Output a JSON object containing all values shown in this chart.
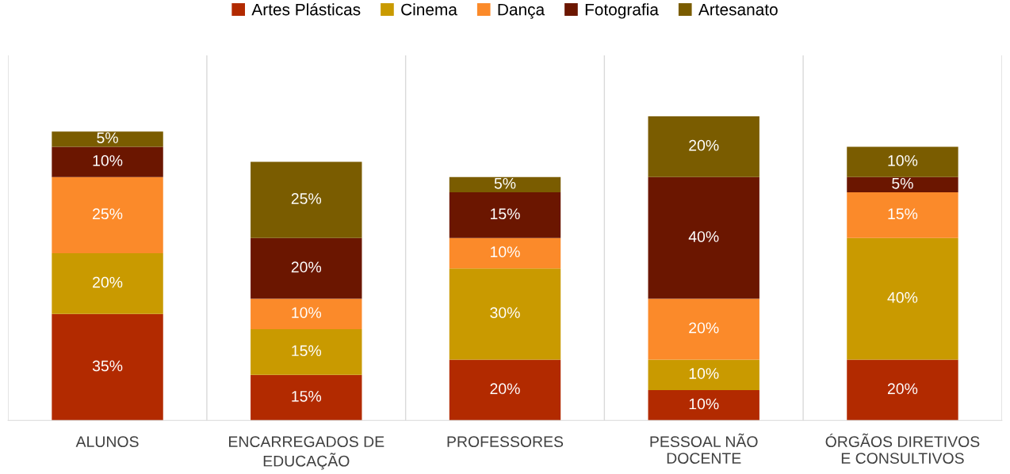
{
  "chart_data": {
    "type": "bar",
    "stacked": true,
    "legend": "top",
    "categories": [
      "ALUNOS",
      "ENCARREGADOS DE\nEDUCAÇÃO",
      "PROFESSORES",
      "PESSOAL NÃO\nDOCENTE",
      "ÓRGÃOS DIRETIVOS\nE CONSULTIVOS"
    ],
    "series": [
      {
        "name": "Artes Plásticas",
        "color": "#b22a00",
        "values": [
          35,
          15,
          20,
          10,
          20
        ],
        "value_labels": [
          "35%",
          "15%",
          "20%",
          "10%",
          "20%"
        ]
      },
      {
        "name": "Cinema",
        "color": "#c99a00",
        "values": [
          20,
          15,
          30,
          10,
          40
        ],
        "value_labels": [
          "20%",
          "15%",
          "30%",
          "10%",
          "40%"
        ]
      },
      {
        "name": "Dança",
        "color": "#fb8a2a",
        "values": [
          25,
          10,
          10,
          20,
          15
        ],
        "value_labels": [
          "25%",
          "10%",
          "10%",
          "20%",
          "15%"
        ]
      },
      {
        "name": "Fotografia",
        "color": "#6b1600",
        "values": [
          10,
          20,
          15,
          40,
          5
        ],
        "value_labels": [
          "10%",
          "20%",
          "15%",
          "40%",
          "5%"
        ]
      },
      {
        "name": "Artesanato",
        "color": "#7a5c00",
        "values": [
          5,
          25,
          5,
          20,
          10
        ],
        "value_labels": [
          "5%",
          "25%",
          "5%",
          "20%",
          "10%"
        ]
      }
    ]
  }
}
